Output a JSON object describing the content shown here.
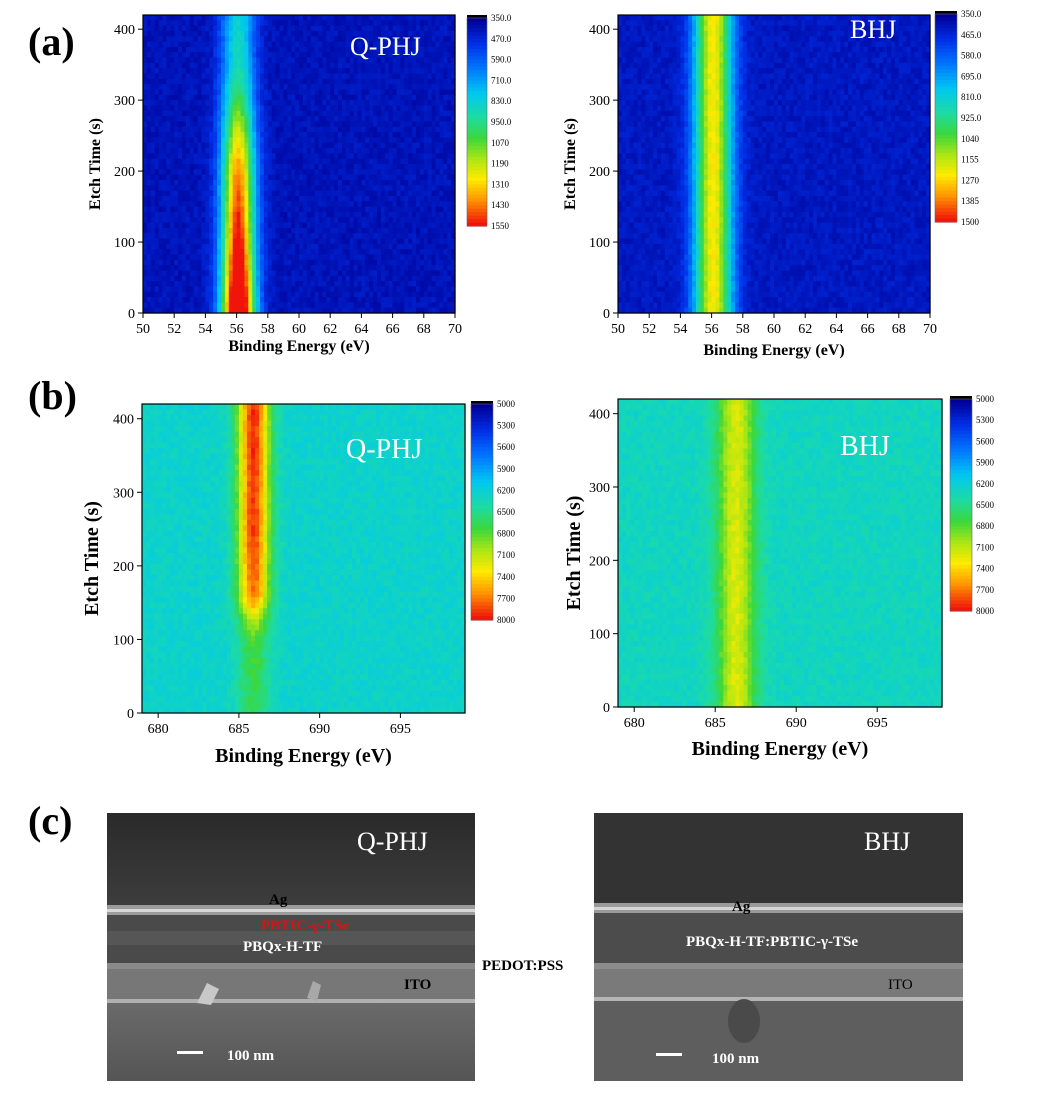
{
  "panel_labels": {
    "a": "(a)",
    "b": "(b)",
    "c": "(c)"
  },
  "chart_data": [
    {
      "type": "heatmap",
      "panel": "a",
      "annotation": "Q-PHJ",
      "xlabel": "Binding Energy (eV)",
      "ylabel": "Etch Time (s)",
      "xlim": [
        50,
        70
      ],
      "ylim": [
        0,
        420
      ],
      "xticks": [
        50,
        52,
        54,
        56,
        58,
        60,
        62,
        64,
        66,
        68,
        70
      ],
      "yticks": [
        0,
        100,
        200,
        300,
        400
      ],
      "colorbar": [
        "350.0",
        "470.0",
        "590.0",
        "710.0",
        "830.0",
        "950.0",
        "1070",
        "1190",
        "1310",
        "1430",
        "1550"
      ],
      "vmin": 350,
      "vmax": 1550,
      "background": 410,
      "peak": {
        "center": 56.1,
        "sigma": 0.75,
        "profile": [
          [
            0,
            1500
          ],
          [
            50,
            1320
          ],
          [
            100,
            1190
          ],
          [
            150,
            1090
          ],
          [
            200,
            1010
          ],
          [
            250,
            830
          ],
          [
            300,
            620
          ],
          [
            350,
            470
          ],
          [
            420,
            430
          ]
        ]
      }
    },
    {
      "type": "heatmap",
      "panel": "a",
      "annotation": "BHJ",
      "xlabel": "Binding Energy (eV)",
      "ylabel": "Etch Time (s)",
      "xlim": [
        50,
        70
      ],
      "ylim": [
        0,
        420
      ],
      "xticks": [
        50,
        52,
        54,
        56,
        58,
        60,
        62,
        64,
        66,
        68,
        70
      ],
      "yticks": [
        0,
        100,
        200,
        300,
        400
      ],
      "colorbar": [
        "350.0",
        "465.0",
        "580.0",
        "695.0",
        "810.0",
        "925.0",
        "1040",
        "1155",
        "1270",
        "1385",
        "1500"
      ],
      "vmin": 350,
      "vmax": 1500,
      "background": 420,
      "peak": {
        "center": 56.1,
        "sigma": 0.85,
        "profile": [
          [
            0,
            820
          ],
          [
            420,
            820
          ]
        ]
      }
    },
    {
      "type": "heatmap",
      "panel": "b",
      "annotation": "Q-PHJ",
      "xlabel": "Binding Energy (eV)",
      "ylabel": "Etch Time (s)",
      "xlim": [
        679,
        699
      ],
      "ylim": [
        0,
        420
      ],
      "xticks": [
        680,
        685,
        690,
        695
      ],
      "yticks": [
        0,
        100,
        200,
        300,
        400
      ],
      "colorbar": [
        "5000",
        "5300",
        "5600",
        "5900",
        "6200",
        "6500",
        "6800",
        "7100",
        "7400",
        "7700",
        "8000"
      ],
      "vmin": 5000,
      "vmax": 8000,
      "background": 6250,
      "peak": {
        "center": 685.9,
        "sigma": 0.7,
        "profile": [
          [
            0,
            400
          ],
          [
            100,
            500
          ],
          [
            130,
            900
          ],
          [
            160,
            1500
          ],
          [
            250,
            1650
          ],
          [
            420,
            1700
          ]
        ]
      }
    },
    {
      "type": "heatmap",
      "panel": "b",
      "annotation": "BHJ",
      "xlabel": "Binding Energy (eV)",
      "ylabel": "Etch Time (s)",
      "xlim": [
        679,
        699
      ],
      "ylim": [
        0,
        420
      ],
      "xticks": [
        680,
        685,
        690,
        695
      ],
      "yticks": [
        0,
        100,
        200,
        300,
        400
      ],
      "colorbar": [
        "5000",
        "5300",
        "5600",
        "5900",
        "6200",
        "6500",
        "6800",
        "7100",
        "7400",
        "7700",
        "8000"
      ],
      "vmin": 5000,
      "vmax": 8000,
      "background": 6300,
      "peak": {
        "center": 686.3,
        "sigma": 0.85,
        "profile": [
          [
            0,
            900
          ],
          [
            420,
            900
          ]
        ]
      }
    }
  ],
  "sem_images": [
    {
      "title": "Q-PHJ",
      "labels": {
        "ag": "Ag",
        "acceptor": "PBTIC-γ-TSe",
        "donor": "PBQx-H-TF",
        "ito": "ITO"
      },
      "scale_bar": "100 nm"
    },
    {
      "title": "BHJ",
      "labels": {
        "ag": "Ag",
        "blend": "PBQx-H-TF:PBTIC-γ-TSe",
        "ito": "ITO"
      },
      "scale_bar": "100 nm"
    }
  ],
  "pedot_label": "PEDOT:PSS",
  "colors": {
    "accent_red": "#e01010",
    "sem_dark": "#333333"
  }
}
